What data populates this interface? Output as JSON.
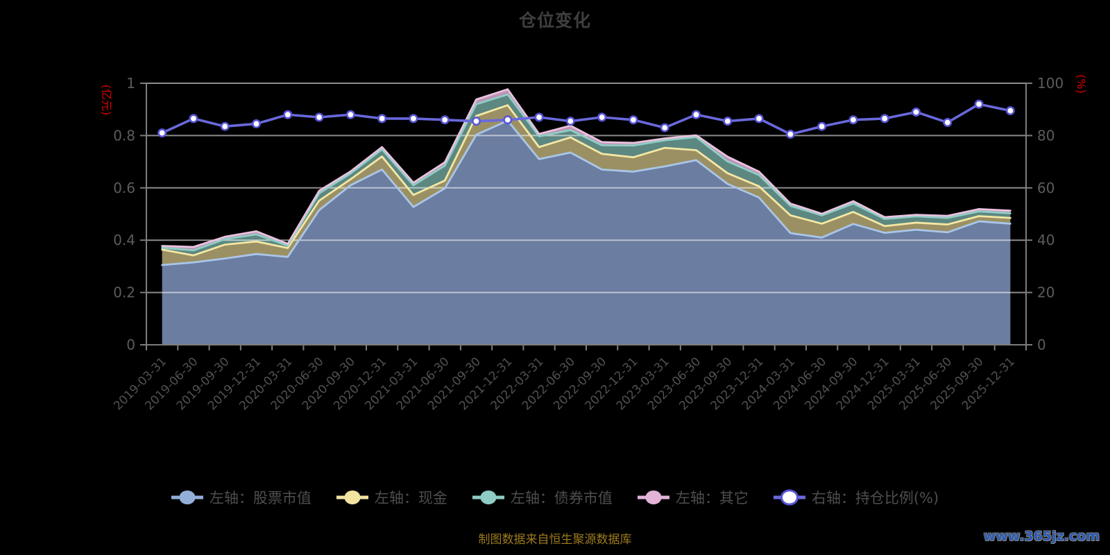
{
  "page": {
    "title": "仓位变化",
    "footer": "制图数据来自恒生聚源数据库",
    "watermark": "www.365jz.com"
  },
  "chart_data": {
    "type": "combo-stacked-area-line",
    "title": "仓位变化",
    "categories": [
      "2019-03-31",
      "2019-06-30",
      "2019-09-30",
      "2019-12-31",
      "2020-03-31",
      "2020-06-30",
      "2020-09-30",
      "2020-12-31",
      "2021-03-31",
      "2021-06-30",
      "2021-09-30",
      "2021-12-31",
      "2022-03-31",
      "2022-06-30",
      "2022-09-30",
      "2022-12-31",
      "2023-03-31",
      "2023-06-30",
      "2023-09-30",
      "2023-12-31",
      "2024-03-31",
      "2024-06-30",
      "2024-09-30",
      "2024-12-31",
      "2025-03-31",
      "2025-06-30",
      "2025-09-30",
      "2025-12-31"
    ],
    "left_axis": {
      "name": "(亿元)",
      "min": 0,
      "max": 1,
      "tick_labels": [
        "0",
        "0.2",
        "0.4",
        "0.6",
        "0.8",
        "1"
      ],
      "name_color": "#dd0000"
    },
    "right_axis": {
      "name": "(%)",
      "min": 0,
      "max": 100,
      "tick_labels": [
        "0",
        "20",
        "40",
        "60",
        "80",
        "100"
      ],
      "name_color": "#dd0000"
    },
    "grid": true,
    "legend_position": "bottom",
    "series": [
      {
        "name": "左轴：股票市值",
        "type": "area",
        "stack": "total",
        "axis": "left",
        "line_color": "#a9c6ea",
        "fill_color": "#6b7da0",
        "legend_color": "#92afd9",
        "values": [
          0.305,
          0.315,
          0.33,
          0.347,
          0.336,
          0.515,
          0.61,
          0.67,
          0.527,
          0.598,
          0.803,
          0.857,
          0.71,
          0.735,
          0.67,
          0.662,
          0.682,
          0.706,
          0.615,
          0.563,
          0.427,
          0.41,
          0.462,
          0.428,
          0.44,
          0.43,
          0.472,
          0.463
        ]
      },
      {
        "name": "左轴：现金",
        "type": "area",
        "stack": "total",
        "axis": "left",
        "line_color": "#f4e7a4",
        "fill_color": "#9b9063",
        "legend_color": "#f2e3a0",
        "values": [
          0.059,
          0.027,
          0.053,
          0.048,
          0.034,
          0.036,
          0.023,
          0.05,
          0.046,
          0.03,
          0.072,
          0.059,
          0.046,
          0.058,
          0.06,
          0.055,
          0.071,
          0.038,
          0.041,
          0.043,
          0.068,
          0.053,
          0.046,
          0.026,
          0.027,
          0.03,
          0.02,
          0.022
        ]
      },
      {
        "name": "左轴：债券市值",
        "type": "area",
        "stack": "total",
        "axis": "left",
        "line_color": "#8fcec5",
        "fill_color": "#5d8781",
        "legend_color": "#8fccc3",
        "values": [
          0.007,
          0.019,
          0.021,
          0.027,
          0.009,
          0.028,
          0.022,
          0.027,
          0.037,
          0.057,
          0.045,
          0.041,
          0.041,
          0.028,
          0.033,
          0.045,
          0.029,
          0.05,
          0.045,
          0.043,
          0.036,
          0.032,
          0.032,
          0.027,
          0.024,
          0.025,
          0.018,
          0.018
        ]
      },
      {
        "name": "左轴：其它",
        "type": "area",
        "stack": "total",
        "axis": "left",
        "line_color": "#e9c2de",
        "fill_color": "#bd93b5",
        "legend_color": "#e3b3d8",
        "values": [
          0.007,
          0.013,
          0.009,
          0.012,
          0.007,
          0.01,
          0.008,
          0.009,
          0.01,
          0.013,
          0.018,
          0.02,
          0.009,
          0.017,
          0.012,
          0.01,
          0.007,
          0.007,
          0.018,
          0.013,
          0.009,
          0.006,
          0.009,
          0.007,
          0.006,
          0.008,
          0.009,
          0.01
        ]
      },
      {
        "name": "右轴：持仓比例(%)",
        "type": "line",
        "axis": "right",
        "line_color": "#6a69dd",
        "marker_fill": "#ffffff",
        "marker_stroke": "#5955d8",
        "values": [
          81,
          86.5,
          83.5,
          84.5,
          88,
          87,
          88,
          86.5,
          86.5,
          86,
          85.5,
          86,
          87,
          85.5,
          87,
          86,
          83,
          88,
          85.5,
          86.5,
          80.5,
          83.5,
          86,
          86.5,
          89,
          85,
          92,
          89.5
        ]
      }
    ],
    "colors": {
      "background": "#000000",
      "title": "#3f3f3f",
      "axis_line": "#7d7d7d",
      "y_tick_label": "#5c5c5c",
      "x_tick_label": "#515151",
      "grid_line": "#ffffff",
      "legend_text": "#4e4e4e",
      "footer_text": "#9c7a1e",
      "watermark": "#2b5bb5"
    }
  }
}
